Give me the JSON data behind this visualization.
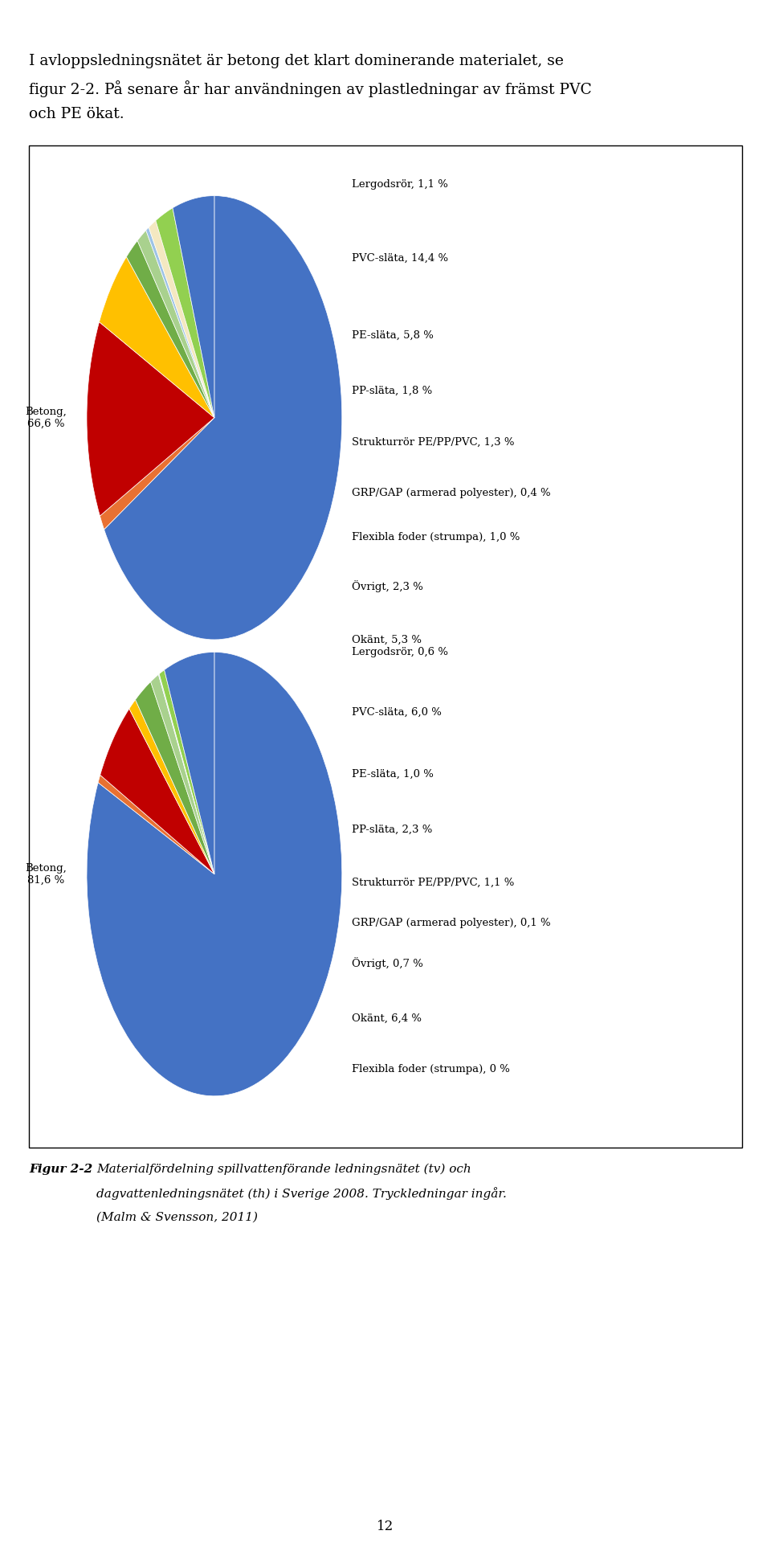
{
  "header_line1": "I avloppsledningsnätet är betong det klart dominerande materialet, se",
  "header_line2": "figur 2-2. På senare år har användningen av plastledningar av främst PVC",
  "header_line3": "och PE ökat.",
  "figcaption_label": "Figur 2-2",
  "figcaption_text": "Materialfördelning spillvattenförande ledningsnätet (tv) och dagvattenledningsnätet (th) i Sverige 2008. Tryckledningar ingår. (Malm & Svensson, 2011)",
  "page_number": "12",
  "pie1_values": [
    66.6,
    1.1,
    14.4,
    5.8,
    1.8,
    1.3,
    0.4,
    1.0,
    2.3,
    5.3
  ],
  "pie1_colors": [
    "#4472C4",
    "#E97132",
    "#C00000",
    "#FFC000",
    "#70AD47",
    "#A9D18E",
    "#9DC3E6",
    "#F4E8C1",
    "#92D050",
    "#4472C4"
  ],
  "pie1_left_label": "Betong,\n66,6 %",
  "pie1_right_labels": [
    "Lergodsrör, 1,1 %",
    "PVC-släta, 14,4 %",
    "PE-släta, 5,8 %",
    "PP-släta, 1,8 %",
    "Strukturrör PE/PP/PVC, 1,3 %",
    "GRP/GAP (armerad polyester), 0,4 %",
    "Flexibla foder (strumpa), 1,0 %",
    "Övrigt, 2,3 %",
    "Okänt, 5,3 %"
  ],
  "pie2_values": [
    81.6,
    0.6,
    6.0,
    1.0,
    2.3,
    1.1,
    0.1,
    0.0,
    0.7,
    6.4
  ],
  "pie2_colors": [
    "#4472C4",
    "#E97132",
    "#C00000",
    "#FFC000",
    "#70AD47",
    "#A9D18E",
    "#9DC3E6",
    "#F4E8C1",
    "#92D050",
    "#4472C4"
  ],
  "pie2_left_label": "Betong,\n81,6 %",
  "pie2_right_labels": [
    "Lergodsrör, 0,6 %",
    "PVC-släta, 6,0 %",
    "PE-släta, 1,0 %",
    "PP-släta, 2,3 %",
    "Strukturrör PE/PP/PVC, 1,1 %",
    "GRP/GAP (armerad polyester), 0,1 %",
    "Övrigt, 0,7 %",
    "Okänt, 6,4 %",
    "Flexibla foder (strumpa), 0 %"
  ]
}
